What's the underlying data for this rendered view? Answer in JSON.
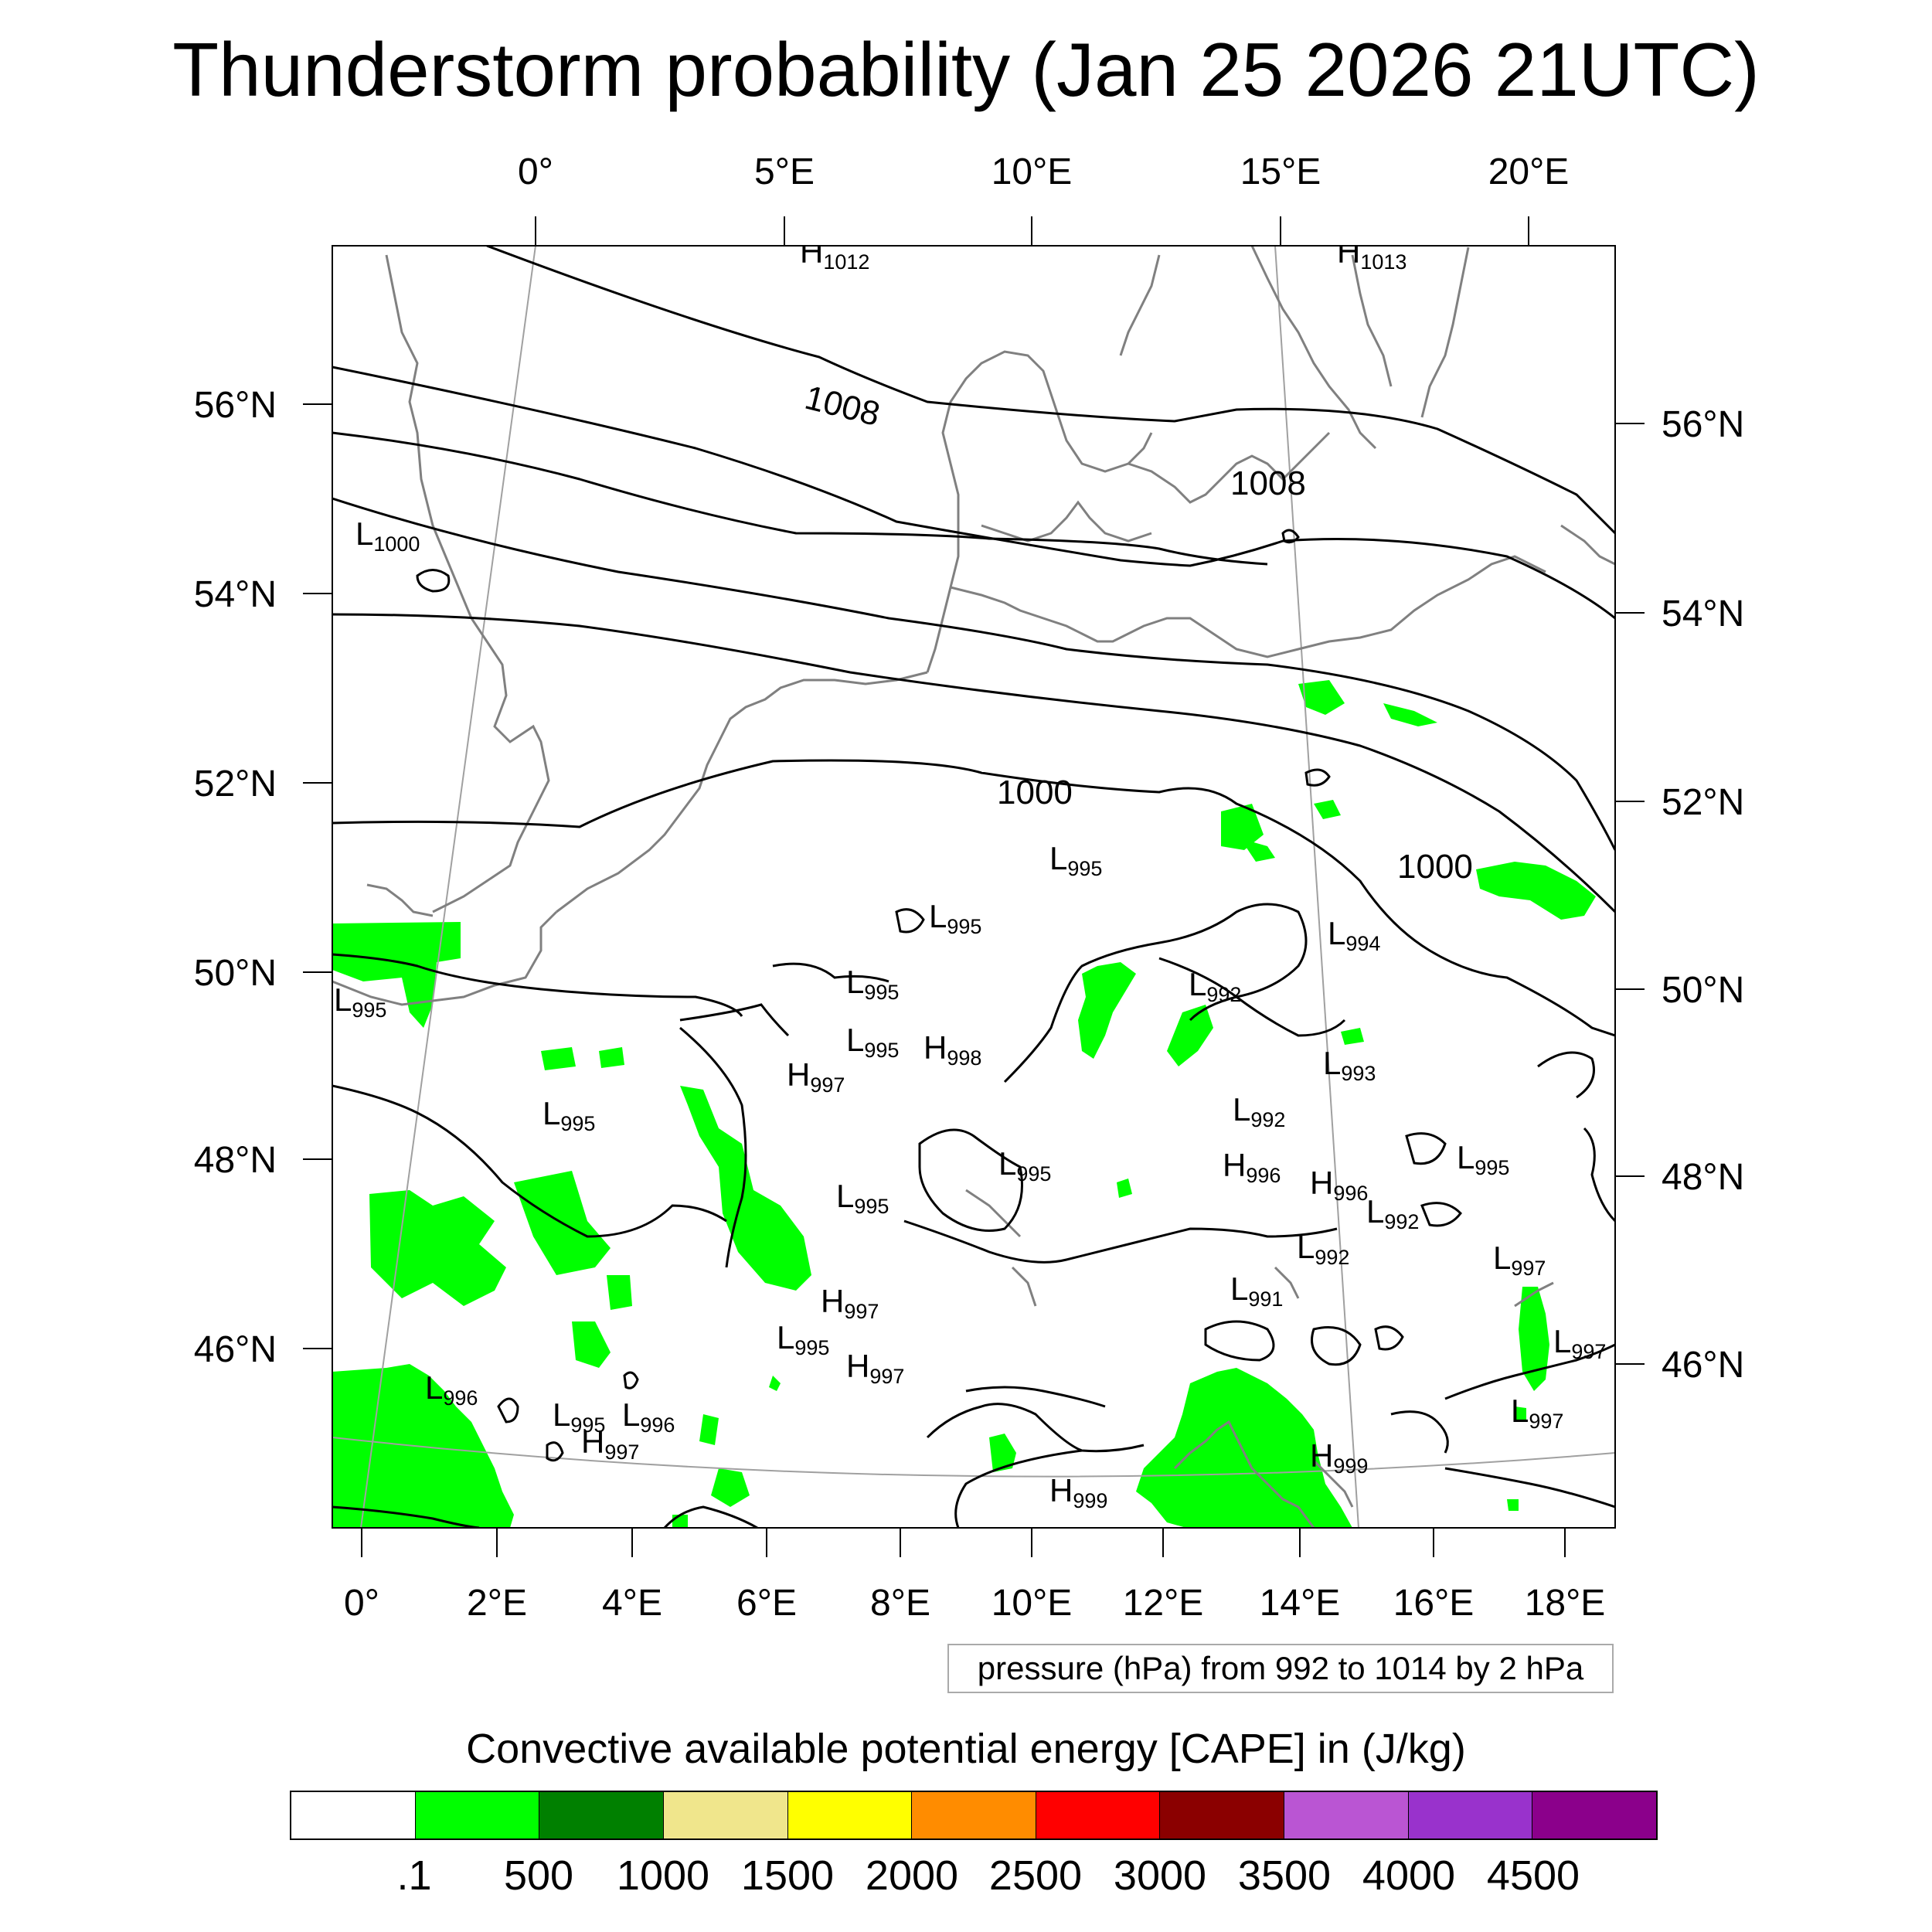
{
  "title": "Thunderstorm probability (Jan 25 2026 21UTC)",
  "colors": {
    "cape_low": "#00ff00",
    "coast": "#808080",
    "isobar": "#000000",
    "graticule": "#a0a0a0"
  },
  "map": {
    "top_lon_labels": [
      "0°",
      "5°E",
      "10°E",
      "15°E",
      "20°E"
    ],
    "bottom_lon_labels": [
      "0°",
      "2°E",
      "4°E",
      "6°E",
      "8°E",
      "10°E",
      "12°E",
      "14°E",
      "16°E",
      "18°E"
    ],
    "left_lat_labels": [
      "56°N",
      "54°N",
      "52°N",
      "50°N",
      "48°N",
      "46°N"
    ],
    "right_lat_labels": [
      "56°N",
      "54°N",
      "52°N",
      "50°N",
      "48°N",
      "46°N"
    ],
    "pressure_centers": [
      {
        "letter": "H",
        "value": "1012"
      },
      {
        "letter": "H",
        "value": "1013"
      },
      {
        "letter": "L",
        "value": "1000"
      },
      {
        "letter": "L",
        "value": "995"
      },
      {
        "letter": "L",
        "value": "995"
      },
      {
        "letter": "L",
        "value": "994"
      },
      {
        "letter": "L",
        "value": "995"
      },
      {
        "letter": "L",
        "value": "995"
      },
      {
        "letter": "L",
        "value": "992"
      },
      {
        "letter": "L",
        "value": "995"
      },
      {
        "letter": "H",
        "value": "998"
      },
      {
        "letter": "H",
        "value": "997"
      },
      {
        "letter": "L",
        "value": "993"
      },
      {
        "letter": "L",
        "value": "995"
      },
      {
        "letter": "L",
        "value": "992"
      },
      {
        "letter": "L",
        "value": "995"
      },
      {
        "letter": "H",
        "value": "996"
      },
      {
        "letter": "H",
        "value": "996"
      },
      {
        "letter": "L",
        "value": "995"
      },
      {
        "letter": "L",
        "value": "995"
      },
      {
        "letter": "L",
        "value": "992"
      },
      {
        "letter": "L",
        "value": "992"
      },
      {
        "letter": "L",
        "value": "997"
      },
      {
        "letter": "H",
        "value": "997"
      },
      {
        "letter": "L",
        "value": "991"
      },
      {
        "letter": "L",
        "value": "995"
      },
      {
        "letter": "H",
        "value": "997"
      },
      {
        "letter": "L",
        "value": "997"
      },
      {
        "letter": "L",
        "value": "996"
      },
      {
        "letter": "L",
        "value": "995"
      },
      {
        "letter": "L",
        "value": "996"
      },
      {
        "letter": "H",
        "value": "997"
      },
      {
        "letter": "L",
        "value": "997"
      },
      {
        "letter": "H",
        "value": "999"
      },
      {
        "letter": "H",
        "value": "999"
      }
    ],
    "isobar_labels": [
      "1008",
      "1008",
      "1000",
      "1000"
    ]
  },
  "contour_info": "pressure (hPa) from 992 to 1014 by 2 hPa",
  "colorbar": {
    "title": "Convective available potential energy [CAPE] in (J/kg)",
    "colors": [
      "#ffffff",
      "#00ff00",
      "#008000",
      "#f0e68c",
      "#ffff00",
      "#ff8c00",
      "#ff0000",
      "#8b0000",
      "#ba55d3",
      "#9932cc",
      "#8b008b"
    ],
    "labels": [
      ".1",
      "500",
      "1000",
      "1500",
      "2000",
      "2500",
      "3000",
      "3500",
      "4000",
      "4500"
    ]
  }
}
